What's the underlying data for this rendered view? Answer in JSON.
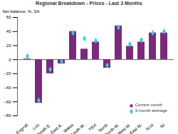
{
  "chart_data": {
    "type": "bar",
    "title": "Regional Breakdown - Prices - Last 3 Months",
    "ylabel": "Net balance, %, SA",
    "categories": [
      "Eng+W",
      "Lon",
      "South E.",
      "East A.",
      "Wales",
      "South W.",
      "Y&H",
      "North",
      "North W.",
      "West M.",
      "East M.",
      "Scot",
      "NI"
    ],
    "series": [
      {
        "name": "Current month",
        "type": "bar",
        "color": "#7b2a7b",
        "values": [
          1,
          -62,
          -20,
          -6,
          40,
          15,
          25,
          -12,
          48,
          19,
          25,
          38,
          38
        ]
      },
      {
        "name": "3-month average",
        "type": "scatter",
        "marker": "diamond",
        "color": "#33ccdd",
        "values": [
          5,
          -58,
          -14,
          -3,
          38,
          30,
          27,
          -8,
          46,
          22,
          28,
          38,
          40
        ]
      }
    ],
    "ylim": [
      -80,
      60
    ],
    "yticks": [
      -80,
      -60,
      -40,
      -20,
      0,
      20,
      40,
      60
    ],
    "grid": false,
    "legend": "lower right"
  }
}
